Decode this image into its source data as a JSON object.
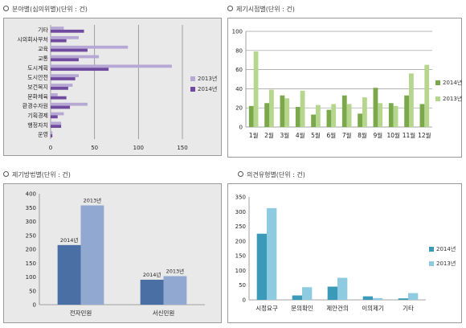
{
  "titles": {
    "field": "분야별(심의위별)(단위 : 건)",
    "month": "제기시점별(단위 : 건)",
    "method": "제기방법별(단위 : 건)",
    "type": "의견유형별(단위 : 건)"
  },
  "colors": {
    "c2013": "#b7a7d4",
    "c2014": "#6f4a9e",
    "m2014": "#7ba84a",
    "m2013": "#b6d68d",
    "p2014": "#4a6fa5",
    "p2013": "#91a8d0",
    "t2014": "#3a9ab8",
    "t2013": "#8ecbe0"
  },
  "chart_data": [
    {
      "type": "bar",
      "orientation": "horizontal",
      "categories": [
        "기타",
        "시의회사무처",
        "교육",
        "교통",
        "도시계획",
        "도시안전",
        "보건복지",
        "문화체육",
        "환경수자원",
        "기획경제",
        "행정자치",
        "운영"
      ],
      "series": [
        {
          "name": "2013년",
          "values": [
            15,
            32,
            88,
            55,
            138,
            32,
            25,
            8,
            42,
            15,
            12,
            2
          ]
        },
        {
          "name": "2014년",
          "values": [
            38,
            18,
            42,
            32,
            66,
            28,
            20,
            18,
            22,
            8,
            12,
            2
          ]
        }
      ],
      "xlim": [
        0,
        150
      ],
      "xticks": [
        0,
        50,
        100,
        150
      ],
      "legend": "right",
      "grid": "vertical"
    },
    {
      "type": "bar",
      "categories": [
        "1월",
        "2월",
        "3월",
        "4월",
        "5월",
        "6월",
        "7월",
        "8월",
        "9월",
        "10월",
        "11월",
        "12월"
      ],
      "series": [
        {
          "name": "2014년",
          "values": [
            22,
            25,
            33,
            21,
            13,
            18,
            33,
            14,
            41,
            25,
            33,
            24
          ]
        },
        {
          "name": "2013년",
          "values": [
            79,
            39,
            30,
            38,
            23,
            24,
            24,
            31,
            25,
            22,
            56,
            65
          ]
        }
      ],
      "ylim": [
        0,
        100
      ],
      "yticks": [
        0,
        20,
        40,
        60,
        80,
        100
      ],
      "legend": "right",
      "grid": "horizontal"
    },
    {
      "type": "bar",
      "categories": [
        "전자민원",
        "서신민원"
      ],
      "series": [
        {
          "name": "2014년",
          "values": [
            215,
            90
          ]
        },
        {
          "name": "2013년",
          "values": [
            358,
            103
          ]
        }
      ],
      "ylim": [
        0,
        400
      ],
      "yticks": [
        0,
        50,
        100,
        150,
        200,
        250,
        300,
        350,
        400
      ],
      "grid": "none"
    },
    {
      "type": "bar",
      "categories": [
        "시정요구",
        "문의확인",
        "제안건의",
        "이의제기",
        "기타"
      ],
      "series": [
        {
          "name": "2014년",
          "values": [
            225,
            15,
            45,
            12,
            5
          ]
        },
        {
          "name": "2013년",
          "values": [
            312,
            43,
            75,
            6,
            23
          ]
        }
      ],
      "ylim": [
        0,
        350
      ],
      "yticks": [
        0,
        50,
        100,
        150,
        200,
        250,
        300,
        350
      ],
      "legend": "right",
      "grid": "none"
    }
  ],
  "legends": {
    "field": [
      "2013년",
      "2014년"
    ],
    "month": [
      "2014년",
      "2013년"
    ],
    "type": [
      "2014년",
      "2013년"
    ]
  }
}
